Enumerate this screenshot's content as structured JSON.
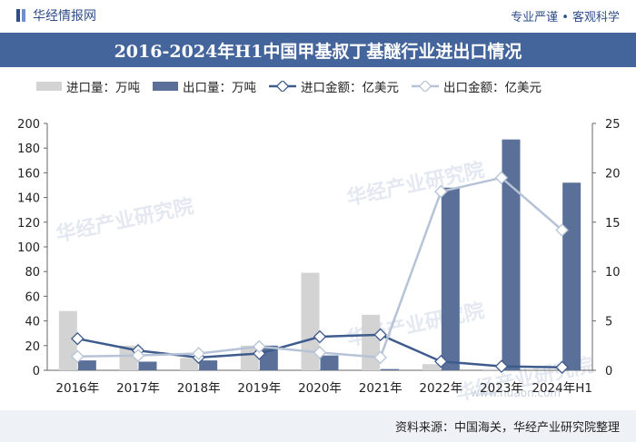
{
  "header": {
    "brand": "华经情报网",
    "slogan": "专业严谨 • 客观科学"
  },
  "watermark": {
    "text": "华经产业研究院",
    "url": "www.huaon.com"
  },
  "footer": {
    "source": "资料来源：中国海关，华经产业研究院整理"
  },
  "colors": {
    "import_qty": "#d3d3d3",
    "export_qty": "#5b7098",
    "import_amt": "#3e5b8d",
    "export_amt": "#b6c3d6",
    "title_bg": "#44649c"
  },
  "chart_data": {
    "type": "bar",
    "title": "2016-2024年H1中国甲基叔丁基醚行业进出口情况",
    "categories": [
      "2016年",
      "2017年",
      "2018年",
      "2019年",
      "2020年",
      "2021年",
      "2022年",
      "2023年",
      "2024年H1"
    ],
    "ylim_left": [
      0,
      200
    ],
    "yticks_left": [
      0,
      20,
      40,
      60,
      80,
      100,
      120,
      140,
      160,
      180,
      200
    ],
    "ylim_right": [
      0,
      25
    ],
    "yticks_right": [
      0,
      5,
      10,
      15,
      20,
      25
    ],
    "grid": false,
    "legend_position": "top",
    "series": [
      {
        "name": "进口量：万吨",
        "type": "bar",
        "axis": "left",
        "values": [
          48,
          20,
          10,
          20,
          79,
          45,
          5,
          1,
          0
        ]
      },
      {
        "name": "出口量：万吨",
        "type": "bar",
        "axis": "left",
        "values": [
          8,
          7,
          8,
          20,
          12,
          1,
          148,
          187,
          152
        ]
      },
      {
        "name": "进口金额：亿美元",
        "type": "line",
        "axis": "right",
        "values": [
          3.2,
          2.0,
          1.3,
          1.7,
          3.4,
          3.6,
          0.9,
          0.4,
          0.3
        ]
      },
      {
        "name": "出口金额：亿美元",
        "type": "line",
        "axis": "right",
        "values": [
          1.4,
          1.5,
          1.7,
          2.4,
          1.8,
          1.3,
          18.1,
          19.5,
          14.2
        ]
      }
    ]
  }
}
